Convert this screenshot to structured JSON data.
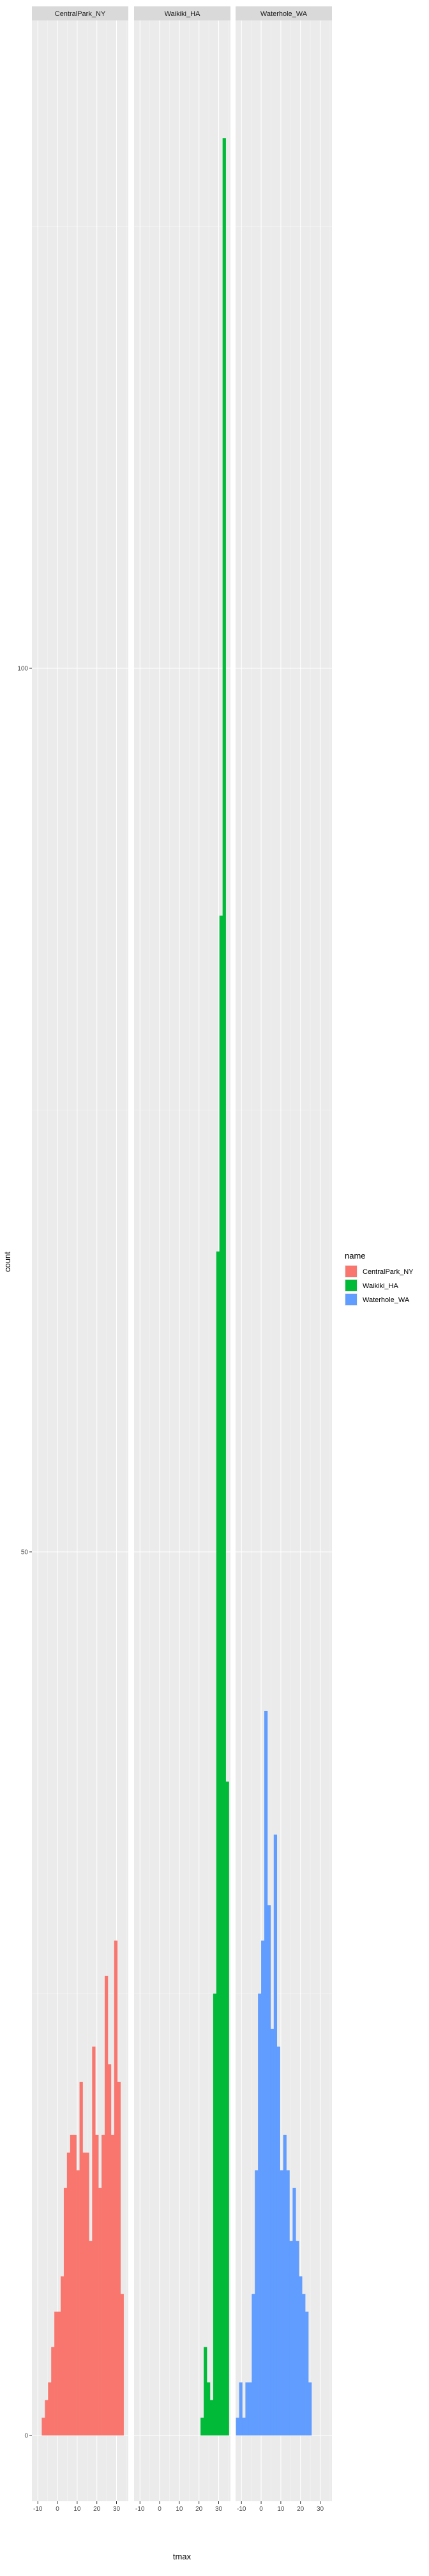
{
  "chart_data": {
    "type": "histogram",
    "facet_variable": "name",
    "panels": [
      "CentralPark_NY",
      "Waikiki_HA",
      "Waterhole_WA"
    ],
    "xlabel": "tmax",
    "ylabel": "count",
    "xlim": [
      -13,
      36
    ],
    "ylim": [
      0,
      130
    ],
    "x_ticks": [
      -10,
      0,
      10,
      20,
      30
    ],
    "y_ticks": [
      0,
      50,
      100
    ],
    "bin_width": 1.6,
    "grid": true,
    "legend": {
      "title": "name",
      "position": "right",
      "entries": [
        {
          "label": "CentralPark_NY",
          "color": "#F8766D"
        },
        {
          "label": "Waikiki_HA",
          "color": "#00BA38"
        },
        {
          "label": "Waterhole_WA",
          "color": "#619CFF"
        }
      ]
    },
    "series": [
      {
        "name": "CentralPark_NY",
        "color": "#F8766D",
        "bins": [
          {
            "x0": -8.0,
            "count": 1
          },
          {
            "x0": -6.4,
            "count": 2
          },
          {
            "x0": -4.8,
            "count": 3
          },
          {
            "x0": -3.2,
            "count": 5
          },
          {
            "x0": -1.6,
            "count": 7
          },
          {
            "x0": 0.0,
            "count": 7
          },
          {
            "x0": 1.6,
            "count": 9
          },
          {
            "x0": 3.2,
            "count": 14
          },
          {
            "x0": 4.8,
            "count": 16
          },
          {
            "x0": 6.4,
            "count": 17
          },
          {
            "x0": 8.0,
            "count": 17
          },
          {
            "x0": 9.6,
            "count": 15
          },
          {
            "x0": 11.2,
            "count": 20
          },
          {
            "x0": 12.8,
            "count": 16
          },
          {
            "x0": 14.4,
            "count": 16
          },
          {
            "x0": 16.0,
            "count": 11
          },
          {
            "x0": 17.6,
            "count": 22
          },
          {
            "x0": 19.2,
            "count": 17
          },
          {
            "x0": 20.8,
            "count": 14
          },
          {
            "x0": 22.4,
            "count": 17
          },
          {
            "x0": 24.0,
            "count": 26
          },
          {
            "x0": 25.6,
            "count": 21
          },
          {
            "x0": 27.2,
            "count": 17
          },
          {
            "x0": 28.8,
            "count": 28
          },
          {
            "x0": 30.4,
            "count": 20
          },
          {
            "x0": 32.0,
            "count": 8
          }
        ]
      },
      {
        "name": "Waikiki_HA",
        "color": "#00BA38",
        "bins": [
          {
            "x0": 20.8,
            "count": 1
          },
          {
            "x0": 22.4,
            "count": 5
          },
          {
            "x0": 24.0,
            "count": 3
          },
          {
            "x0": 25.6,
            "count": 2
          },
          {
            "x0": 27.2,
            "count": 25
          },
          {
            "x0": 28.8,
            "count": 67
          },
          {
            "x0": 30.4,
            "count": 86
          },
          {
            "x0": 32.0,
            "count": 130
          },
          {
            "x0": 33.6,
            "count": 37
          }
        ]
      },
      {
        "name": "Waterhole_WA",
        "color": "#619CFF",
        "bins": [
          {
            "x0": -12.8,
            "count": 1
          },
          {
            "x0": -11.2,
            "count": 3
          },
          {
            "x0": -9.6,
            "count": 1
          },
          {
            "x0": -8.0,
            "count": 3
          },
          {
            "x0": -6.4,
            "count": 3
          },
          {
            "x0": -4.8,
            "count": 8
          },
          {
            "x0": -3.2,
            "count": 15
          },
          {
            "x0": -1.6,
            "count": 25
          },
          {
            "x0": 0.0,
            "count": 28
          },
          {
            "x0": 1.6,
            "count": 41
          },
          {
            "x0": 3.2,
            "count": 30
          },
          {
            "x0": 4.8,
            "count": 23
          },
          {
            "x0": 6.4,
            "count": 34
          },
          {
            "x0": 8.0,
            "count": 22
          },
          {
            "x0": 9.6,
            "count": 15
          },
          {
            "x0": 11.2,
            "count": 17
          },
          {
            "x0": 12.8,
            "count": 15
          },
          {
            "x0": 14.4,
            "count": 11
          },
          {
            "x0": 16.0,
            "count": 14
          },
          {
            "x0": 17.6,
            "count": 11
          },
          {
            "x0": 19.2,
            "count": 9
          },
          {
            "x0": 20.8,
            "count": 8
          },
          {
            "x0": 22.4,
            "count": 7
          },
          {
            "x0": 24.0,
            "count": 3
          }
        ]
      }
    ]
  }
}
